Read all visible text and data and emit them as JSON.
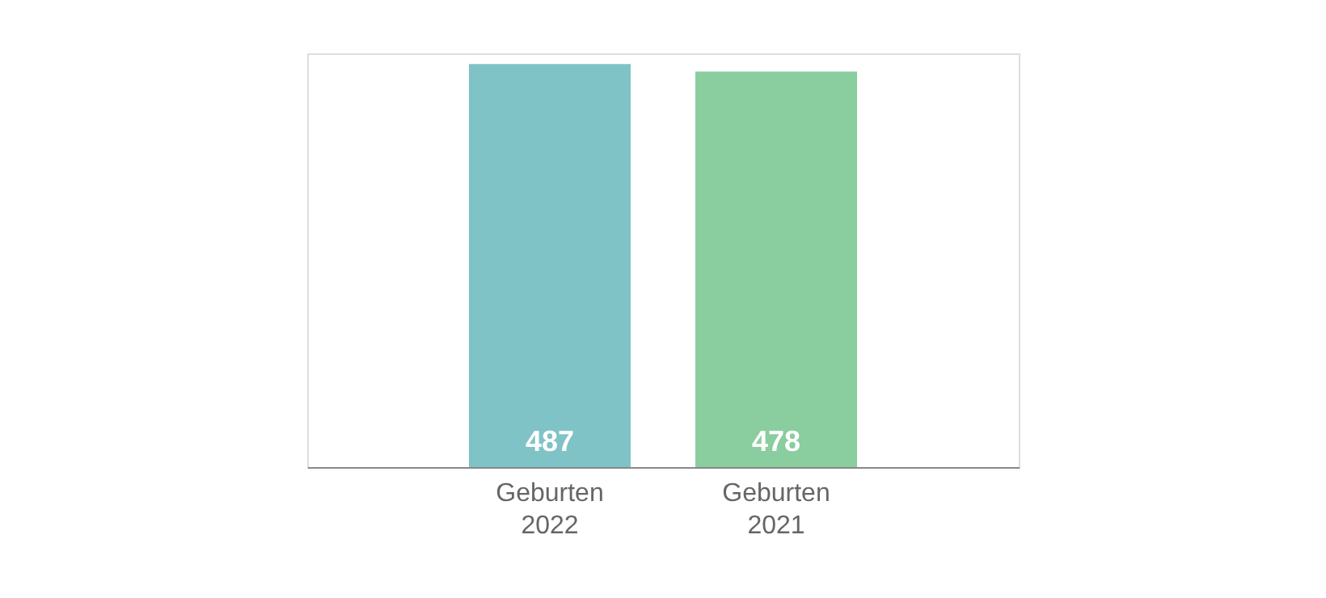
{
  "chart_data": {
    "type": "bar",
    "categories": [
      "Geburten 2022",
      "Geburten 2021"
    ],
    "values": [
      487,
      478
    ],
    "colors": [
      "#7fc3c7",
      "#8acd9f"
    ],
    "ylim": [
      0,
      500
    ],
    "data_labels": true,
    "tick_labels": "x",
    "grid": false
  }
}
